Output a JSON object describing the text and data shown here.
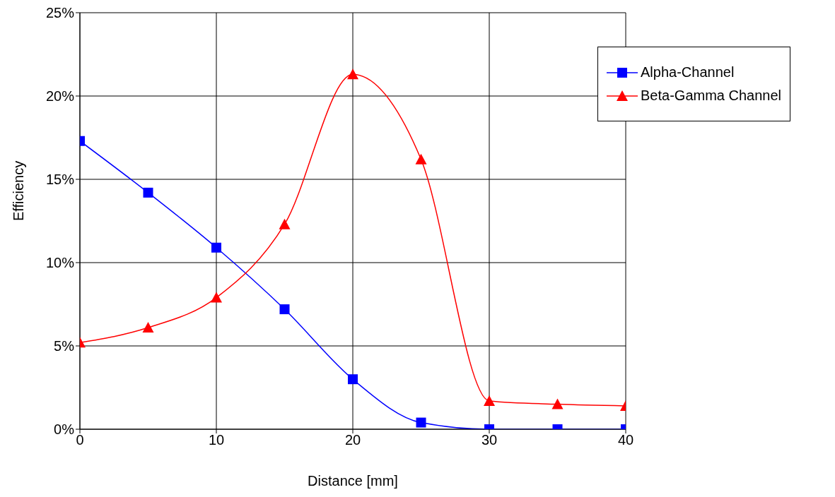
{
  "chart_data": {
    "type": "line",
    "xlabel": "Distance [mm]",
    "ylabel": "Efficiency",
    "x": [
      0,
      5,
      10,
      15,
      20,
      25,
      30,
      35,
      40
    ],
    "series": [
      {
        "name": "Alpha-Channel",
        "color": "#0000ff",
        "marker": "square",
        "values": [
          17.3,
          14.2,
          10.9,
          7.2,
          3.0,
          0.4,
          0,
          0,
          0
        ]
      },
      {
        "name": "Beta-Gamma Channel",
        "color": "#ff0000",
        "marker": "triangle",
        "values": [
          5.2,
          6.1,
          7.9,
          12.3,
          21.3,
          16.2,
          1.7,
          1.5,
          1.4
        ]
      }
    ],
    "xlim": [
      0,
      40
    ],
    "xticks": [
      0,
      10,
      20,
      30,
      40
    ],
    "ylim": [
      0,
      25
    ],
    "yticks": [
      {
        "value": 0,
        "label": "0%"
      },
      {
        "value": 5,
        "label": "5%"
      },
      {
        "value": 10,
        "label": "10%"
      },
      {
        "value": 15,
        "label": "15%"
      },
      {
        "value": 20,
        "label": "20%"
      },
      {
        "value": 25,
        "label": "25%"
      }
    ],
    "grid": true,
    "legend": "top right",
    "line_style": "solid"
  }
}
